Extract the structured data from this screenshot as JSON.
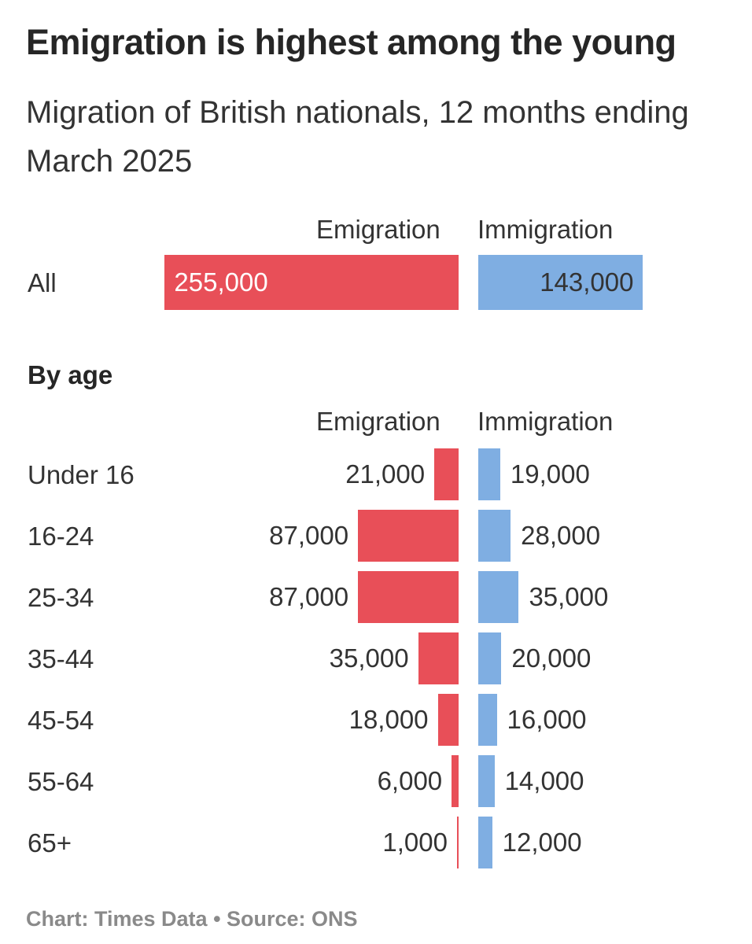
{
  "title": "Emigration is highest among the young",
  "subtitle": "Migration of British nationals, 12 months ending March 2025",
  "column_headers": {
    "emigration": "Emigration",
    "immigration": "Immigration"
  },
  "section_by_age": "By age",
  "footer": "Chart: Times Data • Source: ONS",
  "colors": {
    "emigration": "#e84f58",
    "immigration": "#7faee2"
  },
  "chart_data": [
    {
      "type": "bar",
      "orientation": "diverging-horizontal",
      "categories": [
        "All"
      ],
      "series": [
        {
          "name": "Emigration",
          "values": [
            255000
          ],
          "labels": [
            "255,000"
          ]
        },
        {
          "name": "Immigration",
          "values": [
            143000
          ],
          "labels": [
            "143,000"
          ]
        }
      ]
    },
    {
      "type": "bar",
      "orientation": "diverging-horizontal",
      "title": "By age",
      "categories": [
        "Under 16",
        "16-24",
        "25-34",
        "35-44",
        "45-54",
        "55-64",
        "65+"
      ],
      "series": [
        {
          "name": "Emigration",
          "values": [
            21000,
            87000,
            87000,
            35000,
            18000,
            6000,
            1000
          ],
          "labels": [
            "21,000",
            "87,000",
            "87,000",
            "35,000",
            "18,000",
            "6,000",
            "1,000"
          ]
        },
        {
          "name": "Immigration",
          "values": [
            19000,
            28000,
            35000,
            20000,
            16000,
            14000,
            12000
          ],
          "labels": [
            "19,000",
            "28,000",
            "35,000",
            "20,000",
            "16,000",
            "14,000",
            "12,000"
          ]
        }
      ]
    }
  ]
}
